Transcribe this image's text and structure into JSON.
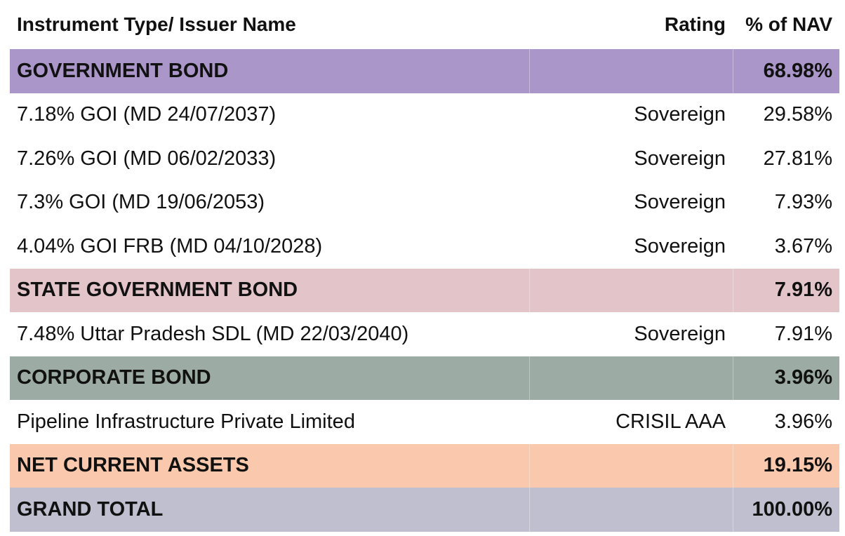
{
  "header": {
    "col1": "Instrument Type/ Issuer Name",
    "col2": "Rating",
    "col3": "% of NAV"
  },
  "rows": [
    {
      "type": "section",
      "name": "GOVERNMENT BOND",
      "rating": "",
      "nav": "68.98%",
      "color": "#aa96c8"
    },
    {
      "type": "item",
      "name": "7.18% GOI (MD 24/07/2037)",
      "rating": "Sovereign",
      "nav": "29.58%"
    },
    {
      "type": "item",
      "name": "7.26% GOI (MD 06/02/2033)",
      "rating": "Sovereign",
      "nav": "27.81%"
    },
    {
      "type": "item",
      "name": "7.3% GOI (MD 19/06/2053)",
      "rating": "Sovereign",
      "nav": "7.93%"
    },
    {
      "type": "item",
      "name": "4.04% GOI FRB (MD 04/10/2028)",
      "rating": "Sovereign",
      "nav": "3.67%"
    },
    {
      "type": "section",
      "name": "STATE GOVERNMENT BOND",
      "rating": "",
      "nav": "7.91%",
      "color": "#e2c4c9"
    },
    {
      "type": "item",
      "name": "7.48% Uttar Pradesh SDL (MD 22/03/2040)",
      "rating": "Sovereign",
      "nav": "7.91%"
    },
    {
      "type": "section",
      "name": "CORPORATE BOND",
      "rating": "",
      "nav": "3.96%",
      "color": "#9caba4"
    },
    {
      "type": "item",
      "name": "Pipeline Infrastructure Private Limited",
      "rating": "CRISIL AAA",
      "nav": "3.96%"
    },
    {
      "type": "section",
      "name": "NET CURRENT ASSETS",
      "rating": "",
      "nav": "19.15%",
      "color": "#fac8ad"
    },
    {
      "type": "section",
      "name": "GRAND TOTAL",
      "rating": "",
      "nav": "100.00%",
      "color": "#c0bfcf"
    }
  ]
}
